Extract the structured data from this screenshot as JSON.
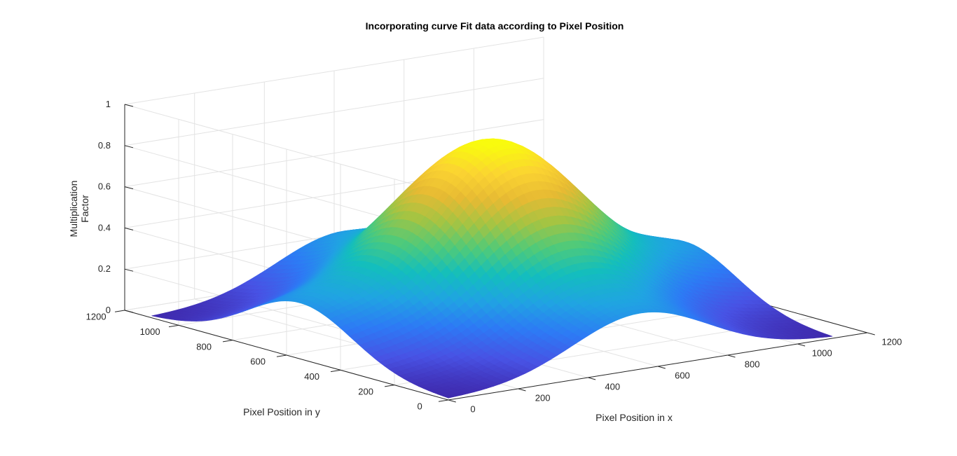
{
  "chart_data": {
    "type": "surface",
    "title": "Incorporating curve Fit data according to Pixel Position",
    "xlabel": "Pixel Position in x",
    "ylabel": "Pixel Position in y",
    "zlabel_lines": [
      "Multiplication",
      "Factor"
    ],
    "xlim": [
      0,
      1200
    ],
    "ylim": [
      0,
      1200
    ],
    "zlim": [
      0,
      1
    ],
    "x_ticks": [
      "0",
      "200",
      "400",
      "600",
      "800",
      "1000",
      "1200"
    ],
    "y_ticks": [
      "0",
      "200",
      "400",
      "600",
      "800",
      "1000",
      "1200"
    ],
    "z_ticks": [
      "0",
      "0.2",
      "0.4",
      "0.6",
      "0.8",
      "1"
    ],
    "surface_domain": [
      0,
      1100
    ],
    "surface": {
      "function": "peak_with_side_lobes",
      "center_x": 550,
      "center_y": 550,
      "peak_value": 0.9,
      "sigma": 230,
      "side_lobe_value": 0.22,
      "side_lobe_offset": 550,
      "side_lobe_sigma": 190
    },
    "colormap": [
      "#3e26a8",
      "#4852e4",
      "#2d7af5",
      "#20a4e2",
      "#13bebd",
      "#4fca7a",
      "#a4c443",
      "#e7ba33",
      "#fbd432",
      "#f9fb0e"
    ],
    "grid": true
  }
}
